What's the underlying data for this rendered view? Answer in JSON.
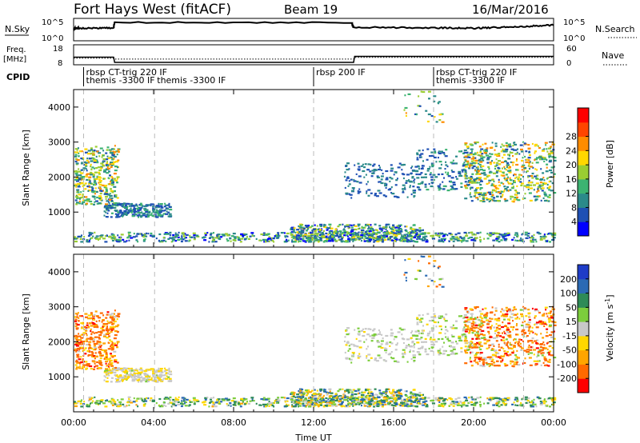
{
  "header": {
    "station": "Fort Hays West (fitACF)",
    "beam": "Beam 19",
    "date": "16/Mar/2016"
  },
  "labels": {
    "nsky": "N.Sky",
    "nsearch": "N.Search",
    "freq_line1": "Freq.",
    "freq_line2": "[MHz]",
    "nave": "Nave",
    "cpid": "CPID",
    "tick_10e5": "10^5",
    "tick_10e0": "10^0",
    "freq_hi": "18",
    "freq_lo": "8",
    "nave_hi": "60",
    "nave_lo": "0",
    "slant_range": "Slant Range [km]",
    "power_label": "Power [dB]",
    "velocity_label": "Velocity [m s",
    "velocity_exp": "-1",
    "velocity_close": "]",
    "time_label": "Time UT"
  },
  "cpid_entries": [
    {
      "hour": 0.5,
      "label": "rbsp CT-trig 220 IF",
      "row": 0
    },
    {
      "hour": 0.5,
      "label": "themis -3300 IF",
      "row": 1
    },
    {
      "hour": 4.05,
      "label": "themis -3300 IF",
      "row": 1
    },
    {
      "hour": 12.0,
      "label": "rbsp 200 IF",
      "row": 0
    },
    {
      "hour": 18.0,
      "label": "rbsp CT-trig 220 IF",
      "row": 0
    },
    {
      "hour": 18.0,
      "label": "themis -3300 IF",
      "row": 1
    }
  ],
  "chart_data": {
    "type": "heatmap",
    "x_unit": "hours UT",
    "xlim": [
      0,
      24
    ],
    "ylim": [
      0,
      4500
    ],
    "x_ticks": [
      "00:00",
      "04:00",
      "08:00",
      "12:00",
      "16:00",
      "20:00",
      "00:00"
    ],
    "x_tick_hours": [
      0,
      4,
      8,
      12,
      16,
      20,
      24
    ],
    "y_ticks": [
      1000,
      2000,
      3000,
      4000
    ],
    "boundaries_hours": [
      0.5,
      4.05,
      12.0,
      18.0,
      22.5
    ],
    "power_scale": {
      "ticks": [
        4,
        8,
        12,
        16,
        20,
        24,
        28
      ],
      "colors": [
        "#0000ff",
        "#1e50b4",
        "#2b8a8a",
        "#3cb371",
        "#9acd32",
        "#ffd700",
        "#ff8c00",
        "#ff4500",
        "#ff0000"
      ]
    },
    "velocity_scale": {
      "ticks": [
        "200",
        "100",
        "50",
        "15",
        "-15",
        "-50",
        "-100",
        "-200"
      ],
      "colors": [
        "#1e3cc8",
        "#2b6ab4",
        "#2e8b57",
        "#7ccd3c",
        "#c8c8c8",
        "#ffd700",
        "#ffa500",
        "#ff6a00",
        "#ff0000"
      ]
    },
    "scatter_regions": [
      {
        "h0": 0.0,
        "h1": 2.2,
        "r0": 1200,
        "r1": 2900,
        "density": 380,
        "power": [
          6,
          26
        ],
        "velocity": [
          -220,
          -10
        ]
      },
      {
        "h0": 1.5,
        "h1": 4.8,
        "r0": 850,
        "r1": 1250,
        "density": 240,
        "power": [
          4,
          14
        ],
        "velocity": [
          -40,
          20
        ]
      },
      {
        "h0": 0.0,
        "h1": 24.0,
        "r0": 150,
        "r1": 420,
        "density": 700,
        "power": [
          2,
          20
        ],
        "velocity": [
          -60,
          120
        ]
      },
      {
        "h0": 10.8,
        "h1": 17.5,
        "r0": 150,
        "r1": 650,
        "density": 500,
        "power": [
          2,
          22
        ],
        "velocity": [
          -80,
          150
        ]
      },
      {
        "h0": 13.5,
        "h1": 17.0,
        "r0": 1400,
        "r1": 2400,
        "density": 160,
        "power": [
          4,
          12
        ],
        "velocity": [
          -20,
          30
        ]
      },
      {
        "h0": 17.0,
        "h1": 20.5,
        "r0": 1600,
        "r1": 2800,
        "density": 200,
        "power": [
          4,
          14
        ],
        "velocity": [
          -20,
          40
        ]
      },
      {
        "h0": 19.5,
        "h1": 24.0,
        "r0": 1300,
        "r1": 3000,
        "density": 560,
        "power": [
          6,
          28
        ],
        "velocity": [
          -230,
          30
        ]
      },
      {
        "h0": 16.5,
        "h1": 18.5,
        "r0": 3400,
        "r1": 4450,
        "density": 30,
        "power": [
          6,
          26
        ],
        "velocity": [
          -200,
          200
        ]
      }
    ],
    "nsky": [
      {
        "h": 0.0,
        "v": 0.55
      },
      {
        "h": 0.3,
        "v": 0.55
      },
      {
        "h": 2.0,
        "v": 0.58
      },
      {
        "h": 2.05,
        "v": 0.82
      },
      {
        "h": 13.9,
        "v": 0.82
      },
      {
        "h": 14.0,
        "v": 0.6
      },
      {
        "h": 18.0,
        "v": 0.58
      },
      {
        "h": 20.0,
        "v": 0.56
      },
      {
        "h": 22.0,
        "v": 0.62
      },
      {
        "h": 24.0,
        "v": 0.7
      }
    ],
    "freq": [
      {
        "h": 0.0,
        "v": 11.8
      },
      {
        "h": 2.0,
        "v": 11.8
      },
      {
        "h": 2.05,
        "v": 9.2
      },
      {
        "h": 14.0,
        "v": 9.2
      },
      {
        "h": 14.05,
        "v": 12.2
      },
      {
        "h": 24.0,
        "v": 12.2
      }
    ],
    "nave": [
      {
        "h": 0.0,
        "v": 20
      },
      {
        "h": 2.0,
        "v": 20
      },
      {
        "h": 2.05,
        "v": 17
      },
      {
        "h": 14.0,
        "v": 17
      },
      {
        "h": 14.05,
        "v": 22
      },
      {
        "h": 24.0,
        "v": 22
      }
    ]
  }
}
